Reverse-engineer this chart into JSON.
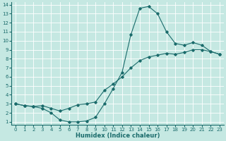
{
  "xlabel": "Humidex (Indice chaleur)",
  "xlim": [
    -0.5,
    23.5
  ],
  "ylim": [
    0.7,
    14.3
  ],
  "xticks": [
    0,
    1,
    2,
    3,
    4,
    5,
    6,
    7,
    8,
    9,
    10,
    11,
    12,
    13,
    14,
    15,
    16,
    17,
    18,
    19,
    20,
    21,
    22,
    23
  ],
  "yticks": [
    1,
    2,
    3,
    4,
    5,
    6,
    7,
    8,
    9,
    10,
    11,
    12,
    13,
    14
  ],
  "bg_color": "#c5e8e2",
  "line_color": "#1a6b6b",
  "grid_color": "#ffffff",
  "curve1_x": [
    0,
    1,
    2,
    3,
    4,
    5,
    6,
    7,
    8,
    9,
    10,
    11,
    12,
    13,
    14,
    15,
    16,
    17,
    18,
    19,
    20,
    21,
    22,
    23
  ],
  "curve1_y": [
    3.0,
    2.8,
    2.7,
    2.5,
    2.0,
    1.2,
    1.0,
    1.0,
    1.1,
    1.5,
    3.0,
    4.7,
    6.5,
    10.7,
    13.6,
    13.8,
    13.0,
    11.0,
    9.7,
    9.5,
    9.8,
    9.5,
    8.8,
    8.5
  ],
  "curve2_x": [
    0,
    1,
    2,
    3,
    4,
    5,
    6,
    7,
    8,
    9,
    10,
    11,
    12,
    13,
    14,
    15,
    16,
    17,
    18,
    19,
    20,
    21,
    22,
    23
  ],
  "curve2_y": [
    3.0,
    2.8,
    2.7,
    2.8,
    2.5,
    2.2,
    2.5,
    2.9,
    3.0,
    3.2,
    4.5,
    5.2,
    6.0,
    7.0,
    7.8,
    8.2,
    8.4,
    8.6,
    8.5,
    8.7,
    9.0,
    9.0,
    8.8,
    8.5
  ]
}
